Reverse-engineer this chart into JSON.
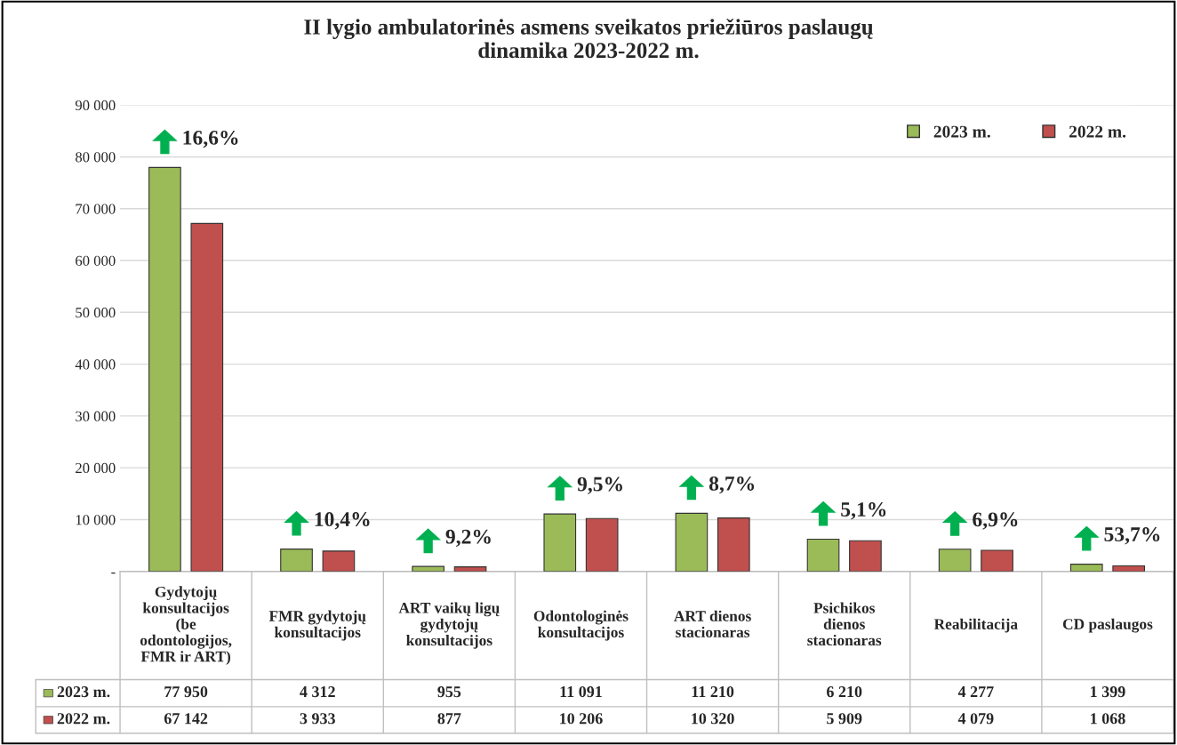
{
  "chart_data": {
    "type": "bar",
    "title": "II lygio ambulatorinės asmens sveikatos priežiūros paslaugų\ndinamika 2023-2022 m.",
    "categories": [
      "Gydytojų\nkonsultacijos\n(be\nodontologijos,\nFMR ir ART)",
      "FMR gydytojų\nkonsultacijos",
      "ART vaikų ligų\ngydytojų\nkonsultacijos",
      "Odontologinės\nkonsultacijos",
      "ART dienos\nstacionaras",
      "Psichikos\ndienos\nstacionaras",
      "Reabilitacija",
      "CD paslaugos"
    ],
    "series": [
      {
        "name": "2023 m.",
        "color": "#9bbb59",
        "values": [
          77950,
          4312,
          955,
          11091,
          11210,
          6210,
          4277,
          1399
        ],
        "value_labels": [
          "77 950",
          "4 312",
          "955",
          "11 091",
          "11 210",
          "6 210",
          "4 277",
          "1 399"
        ]
      },
      {
        "name": "2022 m.",
        "color": "#c0504d",
        "values": [
          67142,
          3933,
          877,
          10206,
          10320,
          5909,
          4079,
          1068
        ],
        "value_labels": [
          "67 142",
          "3 933",
          "877",
          "10 206",
          "10 320",
          "5 909",
          "4 079",
          "1 068"
        ]
      }
    ],
    "ylim": [
      0,
      90000
    ],
    "yticks": [
      {
        "value": 0,
        "label": "-"
      },
      {
        "value": 10000,
        "label": "10 000"
      },
      {
        "value": 20000,
        "label": "20 000"
      },
      {
        "value": 30000,
        "label": "30 000"
      },
      {
        "value": 40000,
        "label": "40 000"
      },
      {
        "value": 50000,
        "label": "50 000"
      },
      {
        "value": 60000,
        "label": "60 000"
      },
      {
        "value": 70000,
        "label": "70 000"
      },
      {
        "value": 80000,
        "label": "80 000"
      },
      {
        "value": 90000,
        "label": "90 000"
      }
    ],
    "annotations": [
      "16,6%",
      "10,4%",
      "9,2%",
      "9,5%",
      "8,7%",
      "5,1%",
      "6,9%",
      "53,7%"
    ],
    "grid": "y",
    "legend": "top right",
    "data_labels": true
  }
}
